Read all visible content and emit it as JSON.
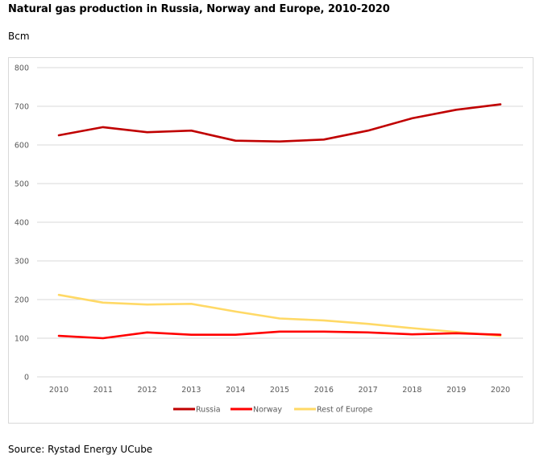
{
  "title": "Natural gas production in Russia, Norway and Europe, 2010-2020",
  "unit_label": "Bcm",
  "source": "Source: Rystad Energy UCube",
  "chart_data": {
    "type": "line",
    "title": "Natural gas production in Russia, Norway and Europe, 2010-2020",
    "xlabel": "",
    "ylabel": "Bcm",
    "x": [
      "2010",
      "2011",
      "2012",
      "2013",
      "2014",
      "2015",
      "2016",
      "2017",
      "2018",
      "2019",
      "2020"
    ],
    "ylim": [
      0,
      800
    ],
    "yticks": [
      0,
      100,
      200,
      300,
      400,
      500,
      600,
      700,
      800
    ],
    "grid": true,
    "legend_position": "bottom",
    "series": [
      {
        "name": "Russia",
        "color": "#C00000",
        "values": [
          625,
          646,
          633,
          637,
          611,
          609,
          614,
          637,
          669,
          691,
          705
        ]
      },
      {
        "name": "Norway",
        "color": "#FF0000",
        "values": [
          106,
          100,
          115,
          109,
          109,
          117,
          117,
          115,
          110,
          113,
          109
        ]
      },
      {
        "name": "Rest of Europe",
        "color": "#FFD966",
        "values": [
          212,
          192,
          187,
          189,
          169,
          151,
          146,
          137,
          126,
          116,
          106
        ]
      }
    ]
  }
}
